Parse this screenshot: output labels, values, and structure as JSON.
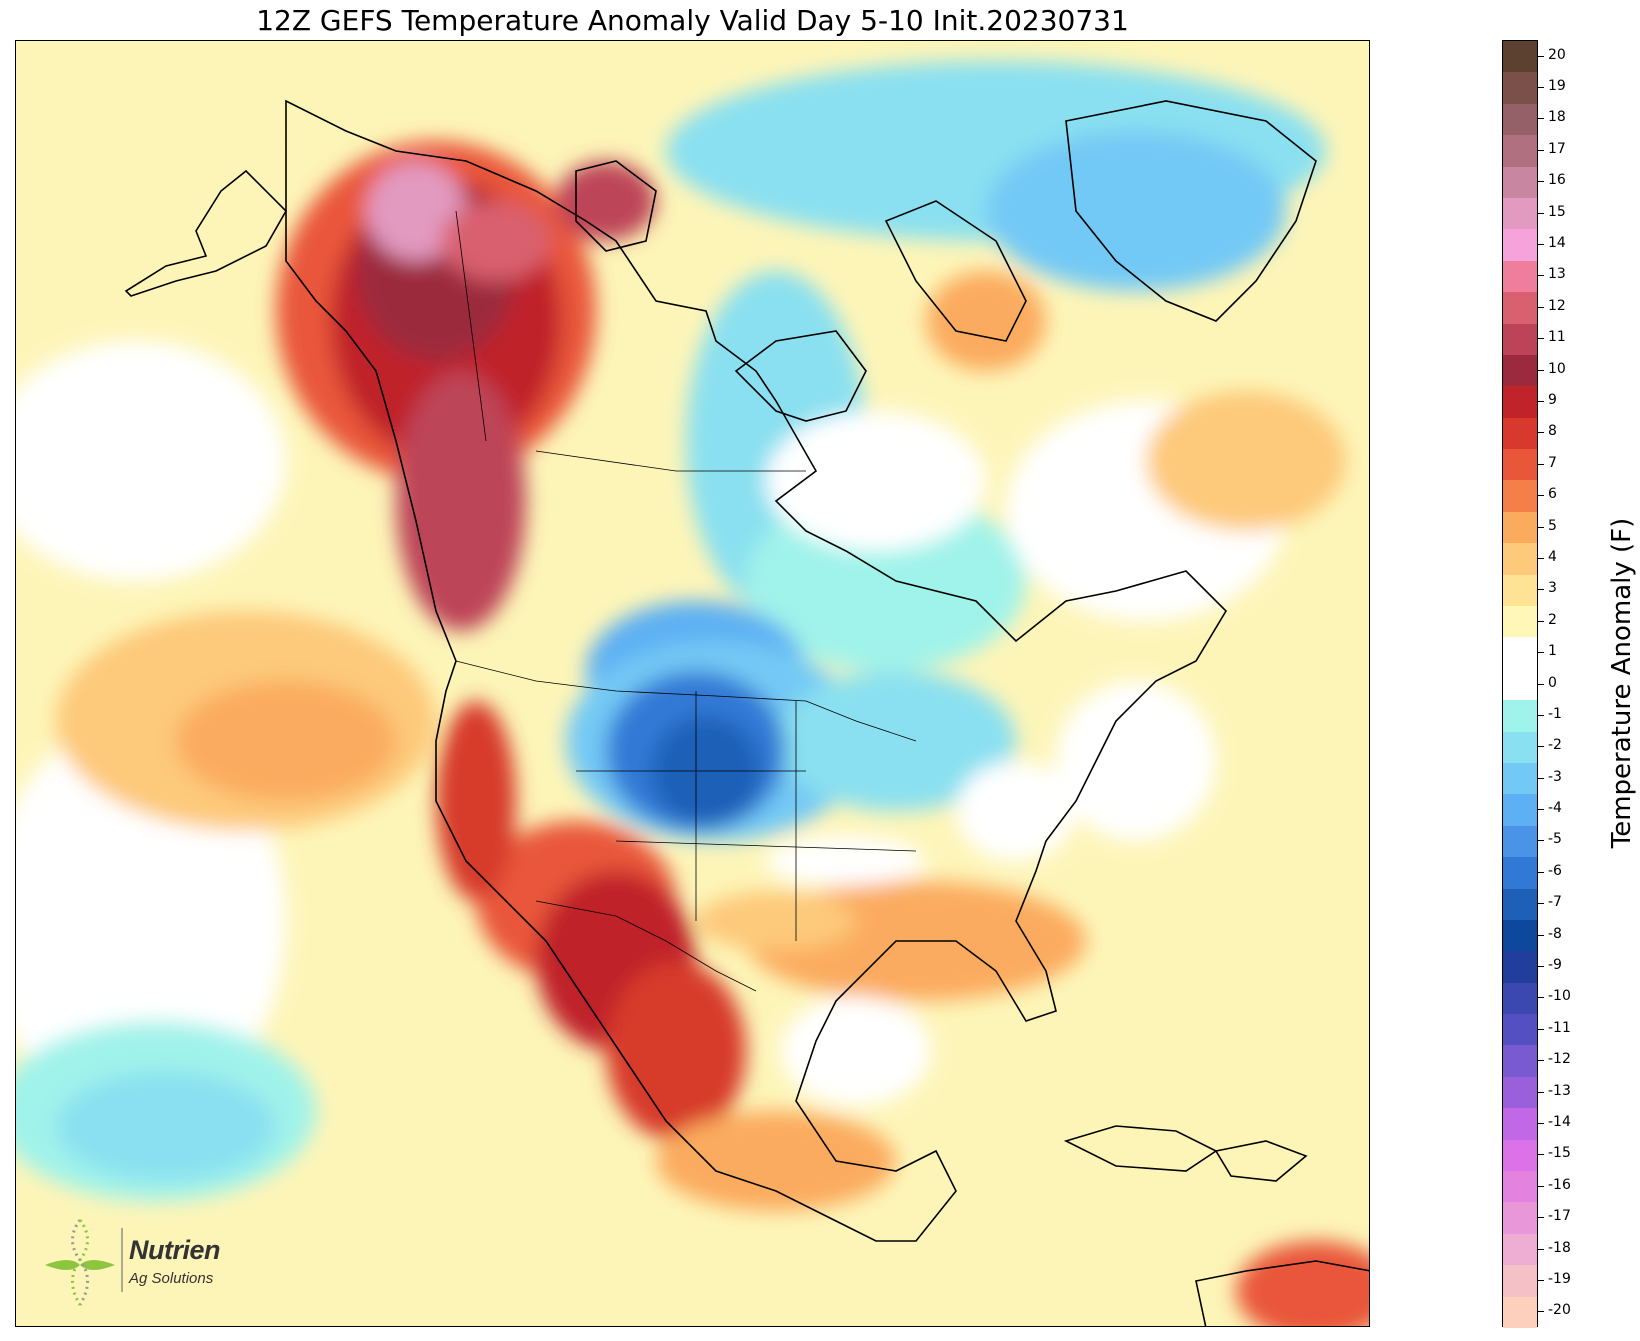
{
  "title": "12Z GEFS Temperature Anomaly Valid Day 5-10 Init.20230731",
  "colorbar": {
    "label": "Temperature Anomaly (F)",
    "ticks": [
      "20",
      "19",
      "18",
      "17",
      "16",
      "15",
      "14",
      "13",
      "12",
      "11",
      "10",
      "9",
      "8",
      "7",
      "6",
      "5",
      "4",
      "3",
      "2",
      "1",
      "0",
      "-1",
      "-2",
      "-3",
      "-4",
      "-5",
      "-6",
      "-7",
      "-8",
      "-9",
      "-10",
      "-11",
      "-12",
      "-13",
      "-14",
      "-15",
      "-16",
      "-17",
      "-18",
      "-19",
      "-20"
    ],
    "colors": [
      "#5c4030",
      "#7a5048",
      "#966068",
      "#b07080",
      "#c886a0",
      "#e29ac0",
      "#f5a3da",
      "#ee7e9c",
      "#d9606e",
      "#bd4458",
      "#9c2a3e",
      "#c0232a",
      "#d73a2c",
      "#e9573a",
      "#f57f48",
      "#fbab5e",
      "#fdc97a",
      "#fee397",
      "#fef7b8",
      "#ffffff",
      "#ffffff",
      "#a0f3ea",
      "#8ae0f0",
      "#73c9f5",
      "#5db0f3",
      "#4a93e7",
      "#3279d5",
      "#1e60b8",
      "#0d489c",
      "#223e9c",
      "#3a48b0",
      "#5550c2",
      "#7a5ad0",
      "#9a5fda",
      "#c068e6",
      "#dc72e8",
      "#e482e0",
      "#e897d8",
      "#eeadd2",
      "#f6c1c6",
      "#fcd0bc"
    ]
  },
  "map": {
    "background_anomaly_color": "#fdf5b8",
    "regions": [
      {
        "name": "Pacific warm anomaly",
        "color": "#fdc97a"
      },
      {
        "name": "Pacific cool anomaly",
        "color": "#a0f3ea"
      },
      {
        "name": "Western Canada heat",
        "color": "#9c2a3e"
      },
      {
        "name": "Alaska / Yukon heat",
        "color": "#e29ac0"
      },
      {
        "name": "Northern Plains cold",
        "color": "#1e60b8"
      },
      {
        "name": "Canadian Arctic cool",
        "color": "#73c9f5"
      },
      {
        "name": "Southwest US heat",
        "color": "#c0232a"
      },
      {
        "name": "Mexico heat",
        "color": "#d73a2c"
      },
      {
        "name": "Southeast US warm",
        "color": "#fbab5e"
      }
    ]
  },
  "logo": {
    "name": "Nutrien",
    "subtitle": "Ag Solutions"
  }
}
